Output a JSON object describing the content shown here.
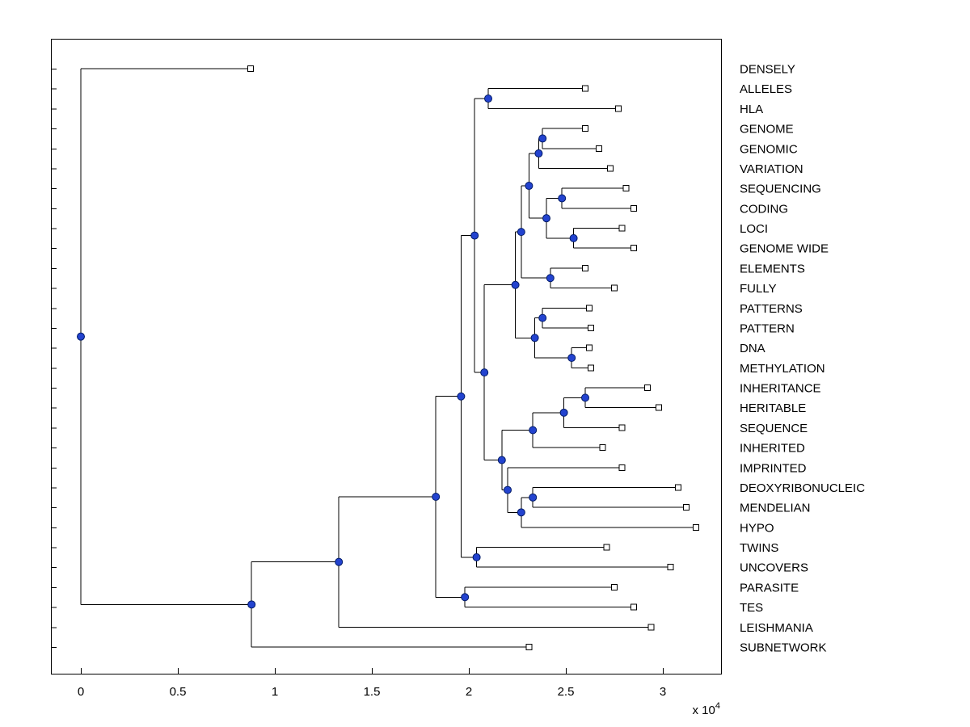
{
  "figure": {
    "background": "#ffffff",
    "line_color": "#000000",
    "axis_color": "#000000",
    "node_marker_color": "#2343cf",
    "node_marker_edge": "#001a66",
    "leaf_marker_fill": "#ffffff",
    "leaf_marker_edge": "#000000"
  },
  "chart_data": {
    "type": "dendrogram",
    "title": "",
    "orientation": "root-left, leaves-right, labels on right side",
    "height_units": "x 10^4",
    "x_axis": {
      "ticks": [
        "0",
        "0.5",
        "1",
        "1.5",
        "2",
        "2.5",
        "3"
      ],
      "tick_values": [
        0,
        0.5,
        1,
        1.5,
        2,
        2.5,
        3
      ],
      "range": [
        -0.154,
        3.304
      ],
      "multiplier": {
        "prefix": "x 10",
        "exponent": "4"
      }
    },
    "leaves": [
      "DENSELY",
      "ALLELES",
      "HLA",
      "GENOME",
      "GENOMIC",
      "VARIATION",
      "SEQUENCING",
      "CODING",
      "LOCI",
      "GENOME WIDE",
      "ELEMENTS",
      "FULLY",
      "PATTERNS",
      "PATTERN",
      "DNA",
      "METHYLATION",
      "INHERITANCE",
      "HERITABLE",
      "SEQUENCE",
      "INHERITED",
      "IMPRINTED",
      "DEOXYRIBONUCLEIC",
      "MENDELIAN",
      "HYPO",
      "TWINS",
      "UNCOVERS",
      "PARASITE",
      "TES",
      "LEISHMANIA",
      "SUBNETWORK"
    ],
    "tree": {
      "h": 0,
      "children": [
        {
          "leaf": "DENSELY",
          "tip": 0.875
        },
        {
          "h": 0.88,
          "children": [
            {
              "h": 1.33,
              "children": [
                {
                  "h": 1.83,
                  "children": [
                    {
                      "h": 1.96,
                      "children": [
                        {
                          "h": 2.03,
                          "children": [
                            {
                              "h": 2.1,
                              "children": [
                                {
                                  "leaf": "ALLELES",
                                  "tip": 2.6
                                },
                                {
                                  "leaf": "HLA",
                                  "tip": 2.77
                                }
                              ]
                            },
                            {
                              "h": 2.08,
                              "children": [
                                {
                                  "h": 2.24,
                                  "children": [
                                    {
                                      "h": 2.27,
                                      "children": [
                                        {
                                          "h": 2.31,
                                          "children": [
                                            {
                                              "h": 2.36,
                                              "children": [
                                                {
                                                  "h": 2.38,
                                                  "children": [
                                                    {
                                                      "leaf": "GENOME",
                                                      "tip": 2.6
                                                    },
                                                    {
                                                      "leaf": "GENOMIC",
                                                      "tip": 2.67
                                                    }
                                                  ]
                                                },
                                                {
                                                  "leaf": "VARIATION",
                                                  "tip": 2.73
                                                }
                                              ]
                                            },
                                            {
                                              "h": 2.4,
                                              "children": [
                                                {
                                                  "h": 2.48,
                                                  "children": [
                                                    {
                                                      "leaf": "SEQUENCING",
                                                      "tip": 2.81
                                                    },
                                                    {
                                                      "leaf": "CODING",
                                                      "tip": 2.85
                                                    }
                                                  ]
                                                },
                                                {
                                                  "h": 2.54,
                                                  "children": [
                                                    {
                                                      "leaf": "LOCI",
                                                      "tip": 2.79
                                                    },
                                                    {
                                                      "leaf": "GENOME WIDE",
                                                      "tip": 2.85
                                                    }
                                                  ]
                                                }
                                              ]
                                            }
                                          ]
                                        },
                                        {
                                          "h": 2.42,
                                          "children": [
                                            {
                                              "leaf": "ELEMENTS",
                                              "tip": 2.6
                                            },
                                            {
                                              "leaf": "FULLY",
                                              "tip": 2.75
                                            }
                                          ]
                                        }
                                      ]
                                    },
                                    {
                                      "h": 2.34,
                                      "children": [
                                        {
                                          "h": 2.38,
                                          "children": [
                                            {
                                              "leaf": "PATTERNS",
                                              "tip": 2.62
                                            },
                                            {
                                              "leaf": "PATTERN",
                                              "tip": 2.63
                                            }
                                          ]
                                        },
                                        {
                                          "h": 2.53,
                                          "children": [
                                            {
                                              "leaf": "DNA",
                                              "tip": 2.62
                                            },
                                            {
                                              "leaf": "METHYLATION",
                                              "tip": 2.63
                                            }
                                          ]
                                        }
                                      ]
                                    }
                                  ]
                                },
                                {
                                  "h": 2.17,
                                  "children": [
                                    {
                                      "h": 2.33,
                                      "children": [
                                        {
                                          "h": 2.49,
                                          "children": [
                                            {
                                              "h": 2.6,
                                              "children": [
                                                {
                                                  "leaf": "INHERITANCE",
                                                  "tip": 2.92
                                                },
                                                {
                                                  "leaf": "HERITABLE",
                                                  "tip": 2.98
                                                }
                                              ]
                                            },
                                            {
                                              "leaf": "SEQUENCE",
                                              "tip": 2.79
                                            }
                                          ]
                                        },
                                        {
                                          "leaf": "INHERITED",
                                          "tip": 2.69
                                        }
                                      ]
                                    },
                                    {
                                      "h": 2.2,
                                      "children": [
                                        {
                                          "leaf": "IMPRINTED",
                                          "tip": 2.79
                                        },
                                        {
                                          "h": 2.27,
                                          "children": [
                                            {
                                              "h": 2.33,
                                              "children": [
                                                {
                                                  "leaf": "DEOXYRIBONUCLEIC",
                                                  "tip": 3.08
                                                },
                                                {
                                                  "leaf": "MENDELIAN",
                                                  "tip": 3.12
                                                }
                                              ]
                                            },
                                            {
                                              "leaf": "HYPO",
                                              "tip": 3.17
                                            }
                                          ]
                                        }
                                      ]
                                    }
                                  ]
                                }
                              ]
                            }
                          ]
                        },
                        {
                          "h": 2.04,
                          "children": [
                            {
                              "leaf": "TWINS",
                              "tip": 2.71
                            },
                            {
                              "leaf": "UNCOVERS",
                              "tip": 3.04
                            }
                          ]
                        }
                      ]
                    },
                    {
                      "h": 1.98,
                      "children": [
                        {
                          "leaf": "PARASITE",
                          "tip": 2.75
                        },
                        {
                          "leaf": "TES",
                          "tip": 2.85
                        }
                      ]
                    }
                  ]
                },
                {
                  "leaf": "LEISHMANIA",
                  "tip": 2.94
                }
              ]
            },
            {
              "leaf": "SUBNETWORK",
              "tip": 2.31
            }
          ]
        }
      ]
    }
  }
}
